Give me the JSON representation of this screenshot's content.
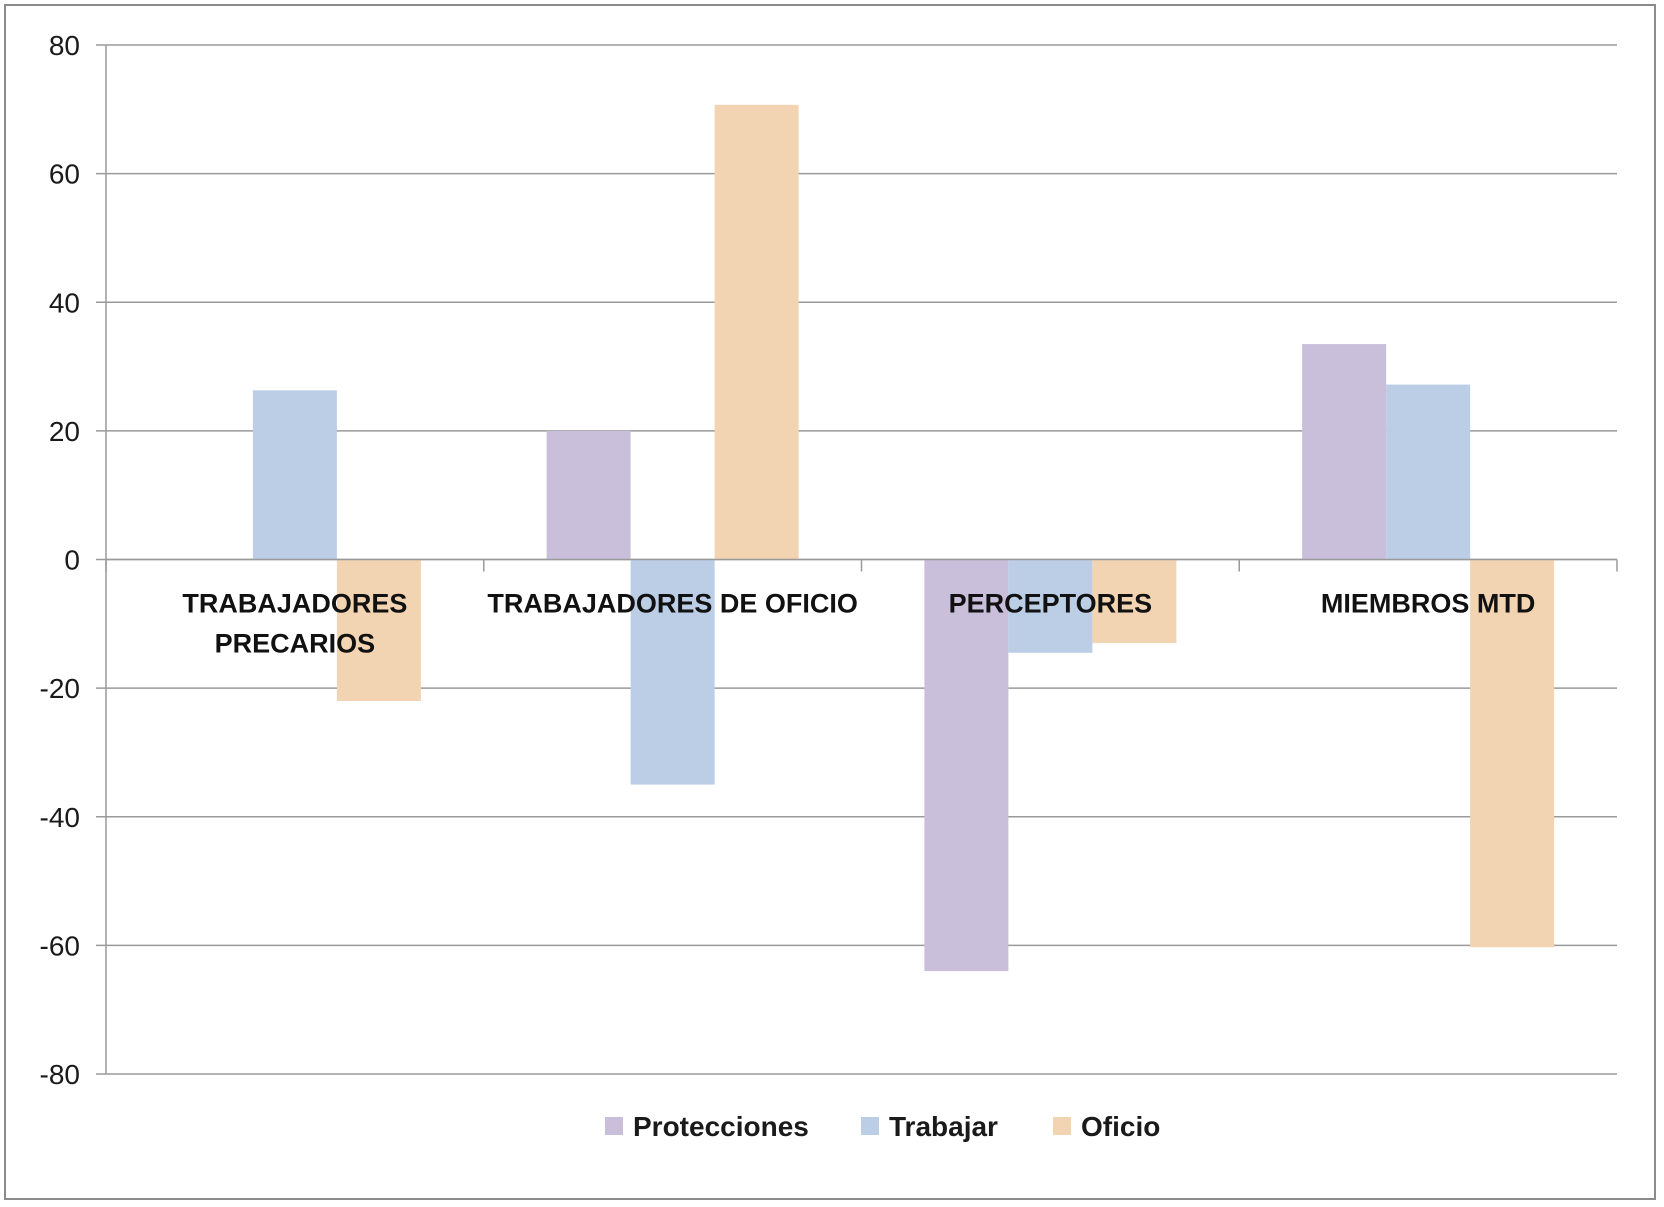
{
  "chart_data": {
    "type": "bar",
    "title": "",
    "xlabel": "",
    "ylabel": "",
    "ylim": [
      -80,
      80
    ],
    "yticks": [
      80,
      60,
      40,
      20,
      0,
      -20,
      -40,
      -60,
      -80
    ],
    "grid": true,
    "legend_position": "bottom",
    "categories": [
      [
        "TRABAJADORES",
        "PRECARIOS"
      ],
      [
        "TRABAJADORES DE OFICIO"
      ],
      [
        "PERCEPTORES"
      ],
      [
        "MIEMBROS MTD"
      ]
    ],
    "series": [
      {
        "name": "Protecciones",
        "color": "#c9bfdb",
        "values": [
          0,
          20,
          -64,
          33.5
        ]
      },
      {
        "name": "Trabajar",
        "color": "#bccde6",
        "values": [
          26.3,
          -35,
          -14.5,
          27.2
        ]
      },
      {
        "name": "Oficio",
        "color": "#f2d3b2",
        "values": [
          -22,
          70.7,
          -13,
          -60.3
        ]
      }
    ]
  }
}
